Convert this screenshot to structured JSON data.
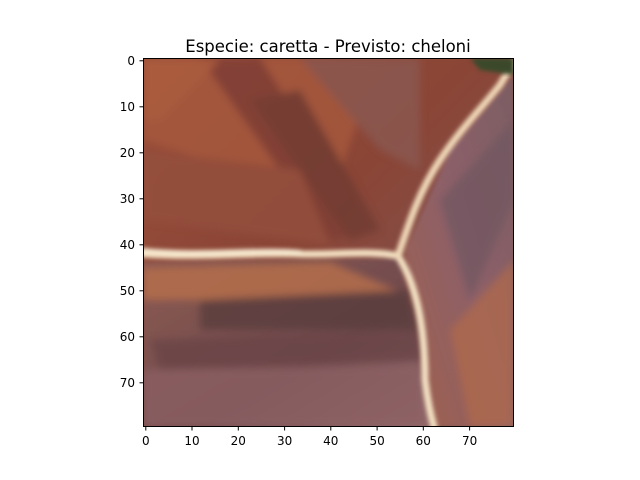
{
  "figure": {
    "title": "Especie: caretta - Previsto: cheloni"
  },
  "image_panel": {
    "icon": "turtle-shell-scutes-image",
    "colors": {
      "base": "#8a4a3a",
      "dark": "#5c3a34",
      "rust": "#b05a3a",
      "mauve": "#8f6a72",
      "seam": "#f2e0c0",
      "corner_green": "#3a4a2c"
    }
  },
  "x_axis": {
    "ticks": [
      "0",
      "10",
      "20",
      "30",
      "40",
      "50",
      "60",
      "70"
    ]
  },
  "y_axis": {
    "ticks": [
      "0",
      "10",
      "20",
      "30",
      "40",
      "50",
      "60",
      "70"
    ]
  }
}
